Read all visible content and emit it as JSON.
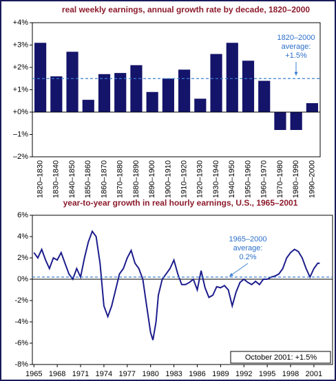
{
  "chart_data": [
    {
      "type": "bar",
      "title": "real weekly earnings, annual growth rate by decade, 1820–2000",
      "categories": [
        "1820–1830",
        "1830–1840",
        "1840–1850",
        "1850–1860",
        "1860–1870",
        "1870–1880",
        "1880–1890",
        "1890–1900",
        "1900–1910",
        "1910–1920",
        "1920–1930",
        "1930–1940",
        "1940–1950",
        "1950–1960",
        "1960–1970",
        "1970–1980",
        "1980–1990",
        "1990–2000"
      ],
      "values": [
        3.1,
        1.6,
        2.7,
        0.55,
        1.7,
        1.75,
        2.1,
        0.9,
        1.5,
        1.9,
        0.6,
        2.6,
        3.1,
        2.3,
        1.4,
        -0.8,
        -0.8,
        0.4
      ],
      "color": "#14146b",
      "average": 1.5,
      "average_color": "#3a7fd0",
      "annotation": [
        "1820–2000",
        "average:",
        "+1.5%"
      ],
      "ylim": [
        -2,
        4
      ],
      "yticks": [
        {
          "value": -2,
          "label": "–2%"
        },
        {
          "value": -1,
          "label": "–1%"
        },
        {
          "value": 0,
          "label": "+0%"
        },
        {
          "value": 1,
          "label": "+1%"
        },
        {
          "value": 2,
          "label": "+2%"
        },
        {
          "value": 3,
          "label": "+3%"
        },
        {
          "value": 4,
          "label": "+4%"
        }
      ]
    },
    {
      "type": "line",
      "title": "year-to-year growth in real hourly earnings, U.S., 1965–2001",
      "x": [
        1965,
        1965.5,
        1966,
        1966.5,
        1967,
        1967.5,
        1968,
        1968.5,
        1969,
        1969.5,
        1970,
        1970.5,
        1971,
        1971.5,
        1972,
        1972.5,
        1973,
        1973.5,
        1974,
        1974.5,
        1975,
        1975.5,
        1976,
        1976.5,
        1977,
        1977.5,
        1978,
        1978.5,
        1979,
        1979.5,
        1980,
        1980.3,
        1980.7,
        1981,
        1981.5,
        1982,
        1982.5,
        1983,
        1983.5,
        1984,
        1984.5,
        1985,
        1985.5,
        1986,
        1986.5,
        1987,
        1987.5,
        1988,
        1988.5,
        1989,
        1989.5,
        1990,
        1990.5,
        1991,
        1991.5,
        1992,
        1992.5,
        1993,
        1993.5,
        1994,
        1994.5,
        1995,
        1995.5,
        1996,
        1996.5,
        1997,
        1997.5,
        1998,
        1998.5,
        1999,
        1999.5,
        2000,
        2000.5,
        2001,
        2001.5,
        2001.75
      ],
      "values": [
        2.5,
        2.0,
        2.8,
        1.8,
        1.0,
        2.0,
        1.8,
        2.5,
        1.5,
        0.5,
        0.0,
        1.0,
        0.2,
        2.0,
        3.5,
        4.5,
        4.0,
        1.5,
        -2.5,
        -3.5,
        -2.5,
        -1.0,
        0.5,
        1.0,
        2.0,
        2.7,
        1.5,
        1.0,
        0.0,
        -2.5,
        -5.0,
        -5.7,
        -4.0,
        -1.5,
        0.0,
        0.5,
        1.0,
        1.8,
        0.5,
        -0.5,
        -0.5,
        -0.3,
        0.0,
        -1.0,
        0.8,
        -0.8,
        -1.7,
        -1.5,
        -0.7,
        -0.8,
        -0.6,
        -1.0,
        -2.5,
        -1.2,
        -0.3,
        0.0,
        -0.3,
        -0.5,
        -0.2,
        -0.5,
        0.0,
        0.0,
        0.2,
        0.3,
        0.5,
        1.0,
        2.0,
        2.5,
        2.8,
        2.6,
        2.0,
        1.0,
        0.2,
        1.0,
        1.5,
        1.5
      ],
      "color": "#1c1c8c",
      "average": 0.2,
      "average_color": "#3a7fd0",
      "annotation": [
        "1965–2000",
        "average:",
        "0.2%"
      ],
      "note": "October 2001: +1.5%",
      "xlim": [
        1964.8,
        2003.4
      ],
      "xticks": [
        1965,
        1968,
        1971,
        1974,
        1977,
        1980,
        1983,
        1986,
        1989,
        1992,
        1995,
        1998,
        2001
      ],
      "ylim": [
        -8,
        6
      ],
      "yticks": [
        {
          "value": -8,
          "label": "-8%"
        },
        {
          "value": -6,
          "label": "-6%"
        },
        {
          "value": -4,
          "label": "-4%"
        },
        {
          "value": -2,
          "label": "-2%"
        },
        {
          "value": 0,
          "label": "0%"
        },
        {
          "value": 2,
          "label": "2%"
        },
        {
          "value": 4,
          "label": "4%"
        },
        {
          "value": 6,
          "label": "6%"
        }
      ]
    }
  ]
}
